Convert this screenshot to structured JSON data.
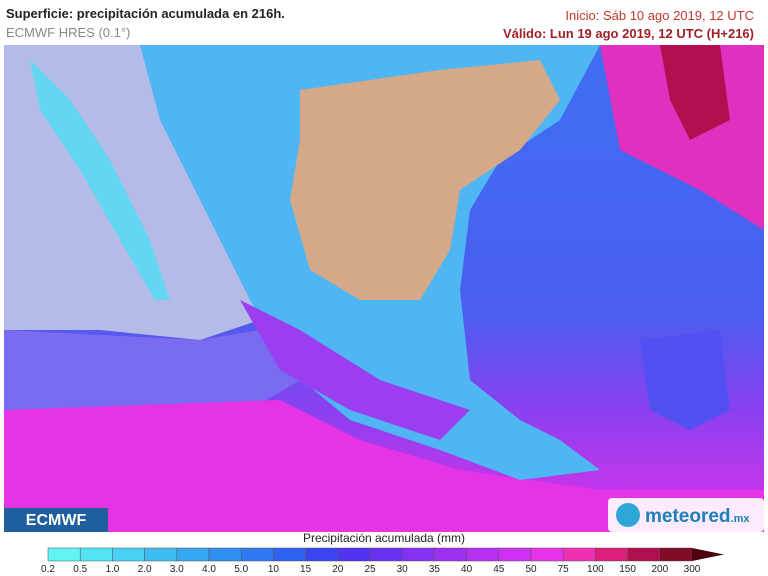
{
  "header": {
    "title": "Superficie: precipitación acumulada en 216h.",
    "subtitle": "ECMWF HRES (0.1°)",
    "init": "Inicio: Sáb 10 ago 2019, 12 UTC",
    "valid": "Válido: Lun 19 ago 2019, 12 UTC (H+216)"
  },
  "logos": {
    "left": "ECMWF",
    "right": "meteored",
    "right_suffix": ".mx"
  },
  "legend": {
    "title": "Precipitación acumulada (mm)",
    "labels": [
      "0.2",
      "0.5",
      "1.0",
      "2.0",
      "3.0",
      "4.0",
      "5.0",
      "10",
      "15",
      "20",
      "25",
      "30",
      "35",
      "40",
      "45",
      "50",
      "75",
      "100",
      "150",
      "200",
      "300"
    ],
    "colors": [
      "#62f3f3",
      "#52e4f2",
      "#47d1f2",
      "#3dbcf2",
      "#35a6f2",
      "#2f90f2",
      "#2f7af2",
      "#3062f2",
      "#3a45f2",
      "#5032f2",
      "#6a30f2",
      "#8630f2",
      "#9e30f2",
      "#b630f2",
      "#cf30f2",
      "#e832ea",
      "#f030b4",
      "#dc1f7a",
      "#b01050",
      "#820c26",
      "#4c0010"
    ]
  }
}
